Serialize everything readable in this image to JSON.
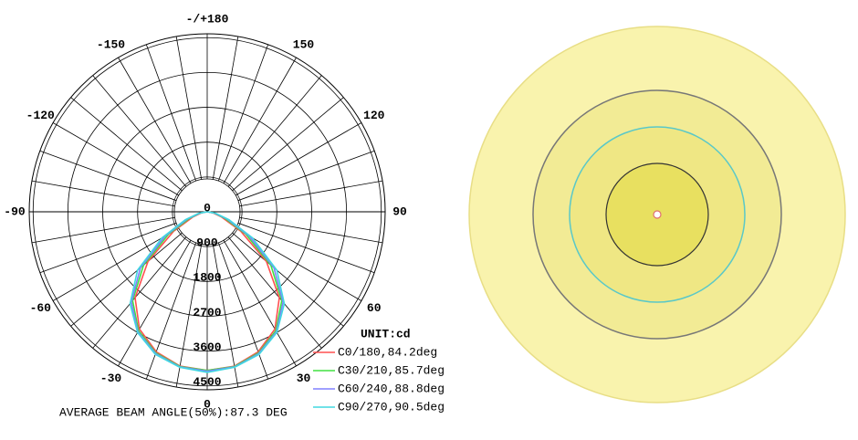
{
  "chart_data": {
    "type": "polar",
    "title": "UNIT:cd",
    "footer": "AVERAGE BEAM ANGLE(50%):87.3 DEG",
    "x": [
      -90,
      -80,
      -70,
      -60,
      -50,
      -40,
      -30,
      -20,
      -10,
      0,
      10,
      20,
      30,
      40,
      50,
      60,
      70,
      80,
      90
    ],
    "series": [
      {
        "name": "C0/180,84.2deg",
        "color": "#ff5050",
        "values": [
          0,
          150,
          400,
          1000,
          2000,
          2900,
          3500,
          3850,
          4050,
          4100,
          4050,
          3850,
          3500,
          2900,
          2000,
          1000,
          400,
          150,
          0
        ]
      },
      {
        "name": "C30/210,85.7deg",
        "color": "#40e040",
        "values": [
          0,
          180,
          480,
          1150,
          2150,
          3000,
          3550,
          3880,
          4060,
          4100,
          4060,
          3880,
          3550,
          3000,
          2150,
          1150,
          480,
          180,
          0
        ]
      },
      {
        "name": "C60/240,88.8deg",
        "color": "#8080ff",
        "values": [
          0,
          200,
          550,
          1250,
          2250,
          3050,
          3580,
          3900,
          4070,
          4120,
          4070,
          3900,
          3580,
          3050,
          2250,
          1250,
          550,
          200,
          0
        ]
      },
      {
        "name": "C90/270,90.5deg",
        "color": "#40d8e0",
        "values": [
          0,
          220,
          600,
          1350,
          2350,
          3100,
          3600,
          3920,
          4080,
          4150,
          4080,
          3920,
          3600,
          3100,
          2350,
          1350,
          600,
          220,
          0
        ]
      }
    ],
    "rlim": [
      0,
      4600
    ],
    "rticks": [
      0,
      900,
      1800,
      2700,
      3600,
      4500
    ],
    "thetaticks": [
      {
        "value": 180,
        "label": "-/+180"
      },
      150,
      120,
      90,
      60,
      30,
      0,
      -30,
      -60,
      -90,
      -120,
      -150
    ],
    "thetagrid": [
      -170,
      -160,
      -140,
      -130,
      -110,
      -100,
      -80,
      -70,
      -50,
      -40,
      -20,
      -10,
      10,
      20,
      40,
      50,
      70,
      80,
      100,
      110,
      130,
      140,
      160,
      170
    ]
  }
}
